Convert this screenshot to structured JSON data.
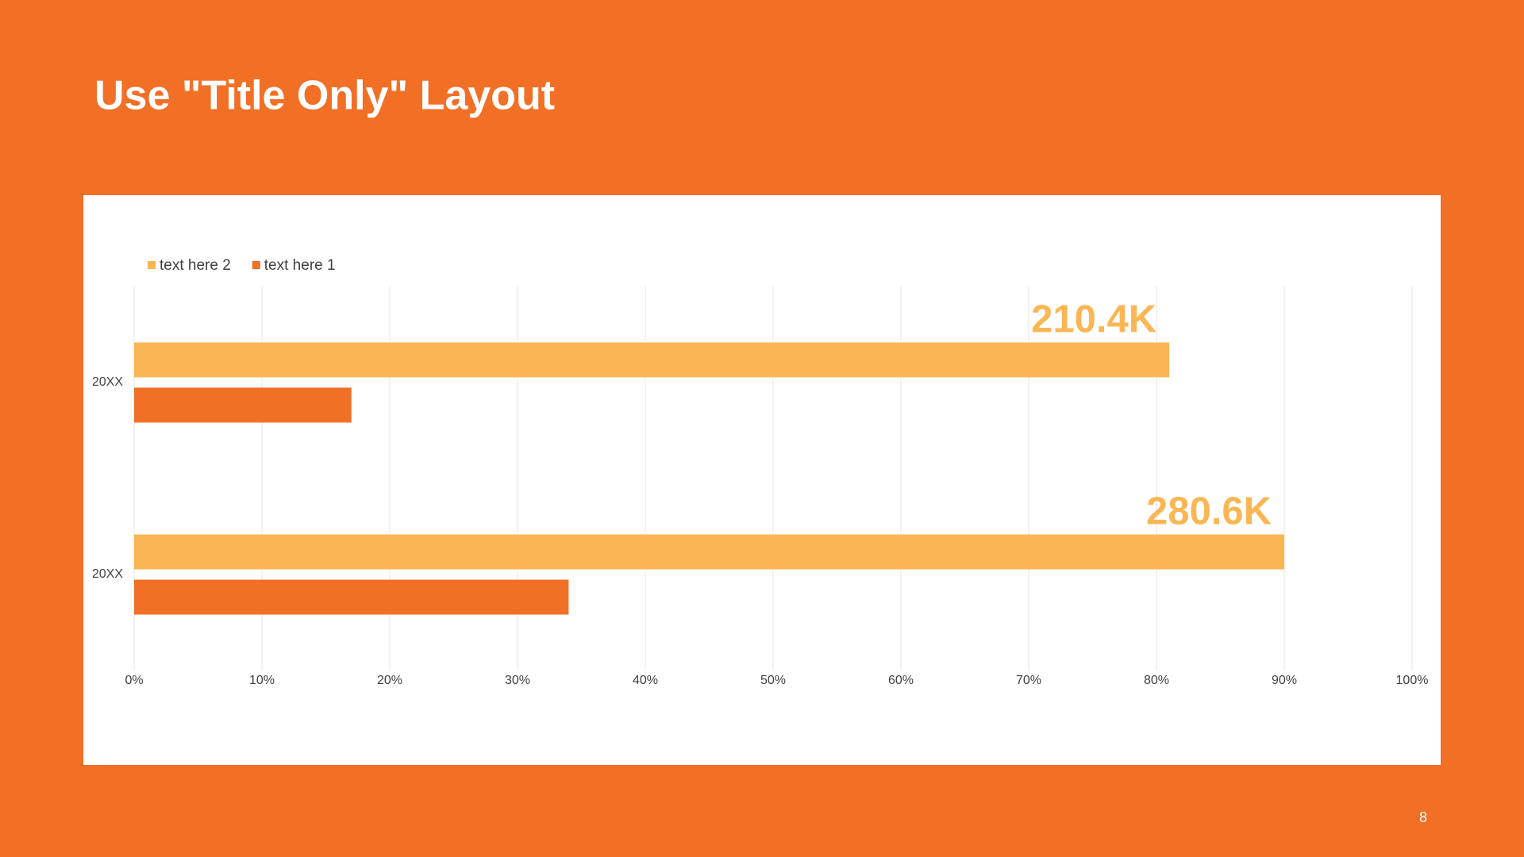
{
  "slide": {
    "title": "Use \"Title Only\" Layout",
    "page_number": "8"
  },
  "chart_data": {
    "type": "hbar",
    "categories": [
      "20XX",
      "20XX"
    ],
    "series": [
      {
        "name": "text here 2",
        "color": "#fbb654",
        "values": [
          81,
          90
        ],
        "annotations": [
          "210.4K",
          "280.6K"
        ]
      },
      {
        "name": "text here 1",
        "color": "#f07026",
        "values": [
          17,
          34
        ]
      }
    ],
    "xlim": [
      0,
      100
    ],
    "xticks": [
      {
        "value": 0,
        "label": "0%"
      },
      {
        "value": 10,
        "label": "10%"
      },
      {
        "value": 20,
        "label": "20%"
      },
      {
        "value": 30,
        "label": "30%"
      },
      {
        "value": 40,
        "label": "40%"
      },
      {
        "value": 50,
        "label": "50%"
      },
      {
        "value": 60,
        "label": "60%"
      },
      {
        "value": 70,
        "label": "70%"
      },
      {
        "value": 80,
        "label": "80%"
      },
      {
        "value": 90,
        "label": "90%"
      },
      {
        "value": 100,
        "label": "100%"
      }
    ],
    "grid": true,
    "legend": "top-left"
  }
}
